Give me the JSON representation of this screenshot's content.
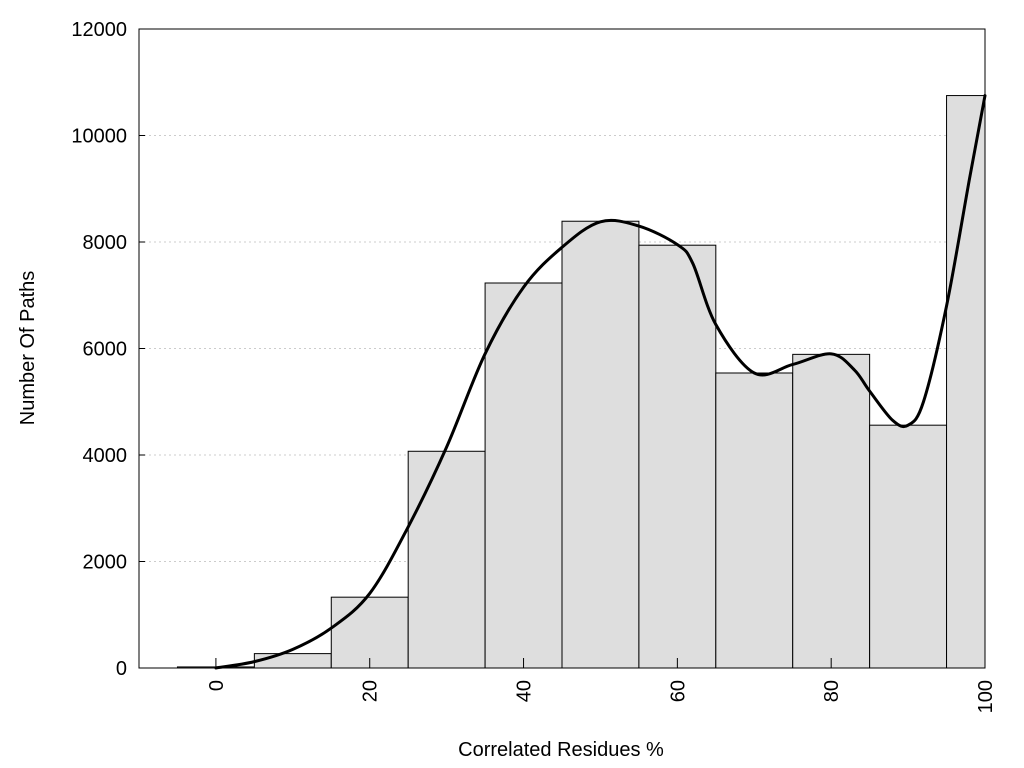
{
  "chart_data": {
    "type": "bar",
    "title": "",
    "xlabel": "Correlated Residues %",
    "ylabel": "Number Of Paths",
    "xlim": [
      -10,
      100
    ],
    "ylim": [
      0,
      12000
    ],
    "grid": true,
    "legend": "none",
    "colors": {
      "bar_fill": "#dedede",
      "bar_stroke": "#000000",
      "curve": "#000000",
      "grid": "#cccccc"
    },
    "x_ticks": [
      {
        "value": 0,
        "label": "0"
      },
      {
        "value": 20,
        "label": "20"
      },
      {
        "value": 40,
        "label": "40"
      },
      {
        "value": 60,
        "label": "60"
      },
      {
        "value": 80,
        "label": "80"
      },
      {
        "value": 100,
        "label": "100"
      }
    ],
    "y_ticks": [
      {
        "value": 0,
        "label": "0"
      },
      {
        "value": 2000,
        "label": "2000"
      },
      {
        "value": 4000,
        "label": "4000"
      },
      {
        "value": 6000,
        "label": "6000"
      },
      {
        "value": 8000,
        "label": "8000"
      },
      {
        "value": 10000,
        "label": "10000"
      },
      {
        "value": 12000,
        "label": "12000"
      }
    ],
    "bins": [
      {
        "start": -5,
        "end": 5,
        "value": 20
      },
      {
        "start": 5,
        "end": 15,
        "value": 270
      },
      {
        "start": 15,
        "end": 25,
        "value": 1330
      },
      {
        "start": 25,
        "end": 35,
        "value": 4070
      },
      {
        "start": 35,
        "end": 45,
        "value": 7230
      },
      {
        "start": 45,
        "end": 55,
        "value": 8390
      },
      {
        "start": 55,
        "end": 65,
        "value": 7940
      },
      {
        "start": 65,
        "end": 75,
        "value": 5540
      },
      {
        "start": 75,
        "end": 85,
        "value": 5890
      },
      {
        "start": 85,
        "end": 95,
        "value": 4560
      },
      {
        "start": 95,
        "end": 100,
        "value": 10750
      }
    ],
    "curve": [
      [
        0,
        0
      ],
      [
        5,
        120
      ],
      [
        10,
        350
      ],
      [
        15,
        750
      ],
      [
        20,
        1400
      ],
      [
        25,
        2650
      ],
      [
        30,
        4150
      ],
      [
        35,
        5900
      ],
      [
        40,
        7150
      ],
      [
        45,
        7900
      ],
      [
        50,
        8380
      ],
      [
        55,
        8300
      ],
      [
        60,
        7950
      ],
      [
        62,
        7600
      ],
      [
        65,
        6450
      ],
      [
        70,
        5540
      ],
      [
        75,
        5700
      ],
      [
        80,
        5900
      ],
      [
        83,
        5600
      ],
      [
        85,
        5200
      ],
      [
        88,
        4650
      ],
      [
        90,
        4560
      ],
      [
        92,
        5000
      ],
      [
        95,
        6800
      ],
      [
        98,
        9200
      ],
      [
        100,
        10750
      ]
    ]
  }
}
